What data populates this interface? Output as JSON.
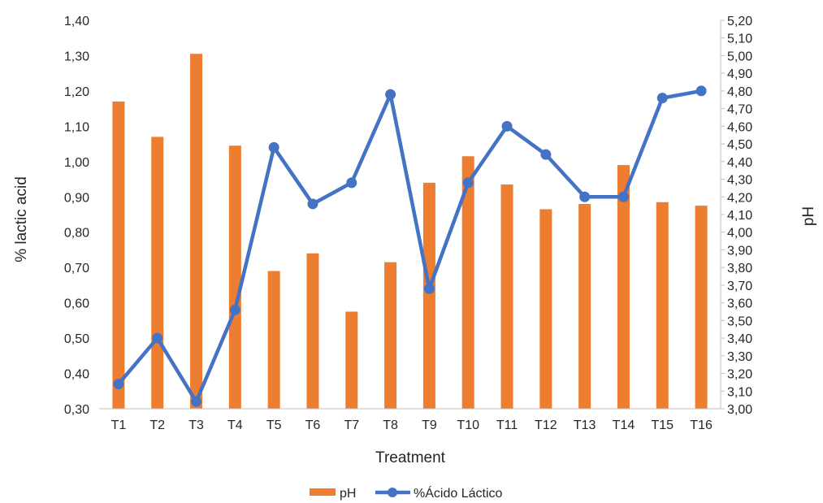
{
  "chart_data": {
    "type": "bar",
    "categories": [
      "T1",
      "T2",
      "T3",
      "T4",
      "T5",
      "T6",
      "T7",
      "T8",
      "T9",
      "T10",
      "T11",
      "T12",
      "T13",
      "T14",
      "T15",
      "T16"
    ],
    "xlabel": "Treatment",
    "ylabel": "% lactic acid",
    "y2label": "pH",
    "ylim": [
      0.3,
      1.4
    ],
    "y2lim": [
      3.0,
      5.2
    ],
    "yticks": [
      "0,30",
      "0,40",
      "0,50",
      "0,60",
      "0,70",
      "0,80",
      "0,90",
      "1,00",
      "1,10",
      "1,20",
      "1,30",
      "1,40"
    ],
    "y2ticks": [
      "3,00",
      "3,10",
      "3,20",
      "3,30",
      "3,40",
      "3,50",
      "3,60",
      "3,70",
      "3,80",
      "3,90",
      "4,00",
      "4,10",
      "4,20",
      "4,30",
      "4,40",
      "4,50",
      "4,60",
      "4,70",
      "4,80",
      "4,90",
      "5,00",
      "5,10",
      "5,20"
    ],
    "grid": false,
    "legend_position": "bottom",
    "series": [
      {
        "name": "pH",
        "type": "bar",
        "axis": "right",
        "color": "#ED7D31",
        "values": [
          4.74,
          4.54,
          5.01,
          4.49,
          3.78,
          3.88,
          3.55,
          3.83,
          4.28,
          4.43,
          4.27,
          4.13,
          4.16,
          4.38,
          4.17,
          4.15
        ]
      },
      {
        "name": "%Ácido Láctico",
        "type": "line",
        "axis": "left",
        "color": "#4472C4",
        "values": [
          0.37,
          0.5,
          0.32,
          0.58,
          1.04,
          0.88,
          0.94,
          1.19,
          0.64,
          0.94,
          1.1,
          1.02,
          0.9,
          0.9,
          1.18,
          1.2
        ]
      }
    ]
  }
}
